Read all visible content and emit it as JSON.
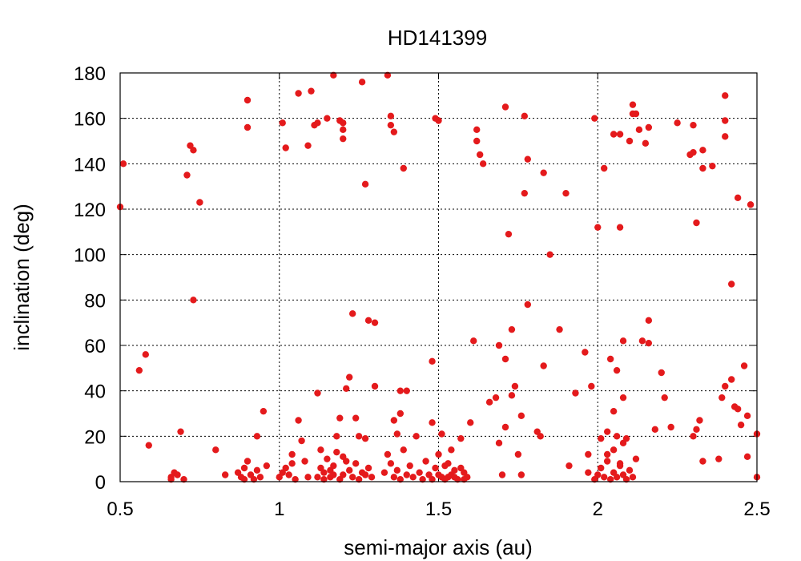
{
  "chart_data": {
    "type": "scatter",
    "title": "HD141399",
    "xlabel": "semi-major axis (au)",
    "ylabel": "inclination (deg)",
    "xlim": [
      0.5,
      2.5
    ],
    "ylim": [
      0,
      180
    ],
    "xticks": [
      0.5,
      1,
      1.5,
      2,
      2.5
    ],
    "xtick_labels": [
      "0.5",
      "1",
      "1.5",
      "2",
      "2.5"
    ],
    "yticks": [
      0,
      20,
      40,
      60,
      80,
      100,
      120,
      140,
      160,
      180
    ],
    "ytick_labels": [
      "0",
      "20",
      "40",
      "60",
      "80",
      "100",
      "120",
      "140",
      "160",
      "180"
    ],
    "grid": true,
    "marker_color": "#e41a1c",
    "points": [
      [
        0.5,
        121
      ],
      [
        0.51,
        140
      ],
      [
        0.56,
        49
      ],
      [
        0.58,
        56
      ],
      [
        0.59,
        16
      ],
      [
        0.71,
        135
      ],
      [
        0.72,
        148
      ],
      [
        0.73,
        146
      ],
      [
        0.73,
        80
      ],
      [
        0.75,
        123
      ],
      [
        0.69,
        22
      ],
      [
        0.66,
        2
      ],
      [
        0.67,
        4
      ],
      [
        0.68,
        3
      ],
      [
        0.7,
        1
      ],
      [
        0.66,
        1
      ],
      [
        0.8,
        14
      ],
      [
        0.83,
        3
      ],
      [
        0.87,
        4
      ],
      [
        0.88,
        2
      ],
      [
        0.89,
        6
      ],
      [
        0.9,
        9
      ],
      [
        0.91,
        3
      ],
      [
        0.92,
        1
      ],
      [
        0.93,
        5
      ],
      [
        0.89,
        1
      ],
      [
        0.9,
        168
      ],
      [
        0.9,
        156
      ],
      [
        0.93,
        20
      ],
      [
        0.95,
        31
      ],
      [
        0.96,
        7
      ],
      [
        0.94,
        2
      ],
      [
        1.01,
        158
      ],
      [
        1.02,
        147
      ],
      [
        1.04,
        8
      ],
      [
        1.06,
        27
      ],
      [
        1.06,
        171
      ],
      [
        1.09,
        148
      ],
      [
        1.0,
        2
      ],
      [
        1.01,
        4
      ],
      [
        1.02,
        6
      ],
      [
        1.03,
        3
      ],
      [
        1.04,
        12
      ],
      [
        1.05,
        1
      ],
      [
        1.07,
        18
      ],
      [
        1.08,
        9
      ],
      [
        1.09,
        2
      ],
      [
        1.1,
        172
      ],
      [
        1.11,
        157
      ],
      [
        1.12,
        158
      ],
      [
        1.15,
        160
      ],
      [
        1.17,
        179
      ],
      [
        1.19,
        159
      ],
      [
        1.2,
        158
      ],
      [
        1.2,
        155
      ],
      [
        1.2,
        151
      ],
      [
        1.12,
        39
      ],
      [
        1.13,
        14
      ],
      [
        1.14,
        4
      ],
      [
        1.15,
        10
      ],
      [
        1.16,
        2
      ],
      [
        1.17,
        7
      ],
      [
        1.18,
        20
      ],
      [
        1.19,
        28
      ],
      [
        1.2,
        11
      ],
      [
        1.21,
        41
      ],
      [
        1.22,
        46
      ],
      [
        1.23,
        74
      ],
      [
        1.24,
        28
      ],
      [
        1.25,
        20
      ],
      [
        1.26,
        176
      ],
      [
        1.27,
        131
      ],
      [
        1.27,
        19
      ],
      [
        1.12,
        2
      ],
      [
        1.13,
        6
      ],
      [
        1.14,
        1
      ],
      [
        1.16,
        5
      ],
      [
        1.17,
        3
      ],
      [
        1.18,
        13
      ],
      [
        1.19,
        1
      ],
      [
        1.2,
        3
      ],
      [
        1.21,
        9
      ],
      [
        1.22,
        5
      ],
      [
        1.23,
        2
      ],
      [
        1.24,
        8
      ],
      [
        1.25,
        1
      ],
      [
        1.26,
        4
      ],
      [
        1.27,
        3
      ],
      [
        1.28,
        6
      ],
      [
        1.29,
        2
      ],
      [
        1.28,
        71
      ],
      [
        1.3,
        70
      ],
      [
        1.3,
        42
      ],
      [
        1.33,
        4
      ],
      [
        1.34,
        179
      ],
      [
        1.35,
        161
      ],
      [
        1.35,
        157
      ],
      [
        1.36,
        154
      ],
      [
        1.36,
        27
      ],
      [
        1.37,
        21
      ],
      [
        1.38,
        30
      ],
      [
        1.38,
        40
      ],
      [
        1.39,
        138
      ],
      [
        1.4,
        40
      ],
      [
        1.34,
        12
      ],
      [
        1.35,
        8
      ],
      [
        1.36,
        2
      ],
      [
        1.37,
        5
      ],
      [
        1.38,
        1
      ],
      [
        1.39,
        14
      ],
      [
        1.4,
        3
      ],
      [
        1.41,
        7
      ],
      [
        1.42,
        2
      ],
      [
        1.43,
        20
      ],
      [
        1.44,
        4
      ],
      [
        1.45,
        1
      ],
      [
        1.46,
        9
      ],
      [
        1.47,
        3
      ],
      [
        1.48,
        53
      ],
      [
        1.48,
        26
      ],
      [
        1.49,
        160
      ],
      [
        1.5,
        159
      ],
      [
        1.5,
        12
      ],
      [
        1.51,
        21
      ],
      [
        1.52,
        7
      ],
      [
        1.53,
        2
      ],
      [
        1.54,
        14
      ],
      [
        1.55,
        5
      ],
      [
        1.56,
        1
      ],
      [
        1.57,
        19
      ],
      [
        1.58,
        4
      ],
      [
        1.59,
        2
      ],
      [
        1.48,
        1
      ],
      [
        1.49,
        6
      ],
      [
        1.5,
        3
      ],
      [
        1.51,
        2
      ],
      [
        1.52,
        1
      ],
      [
        1.53,
        8
      ],
      [
        1.54,
        3
      ],
      [
        1.55,
        2
      ],
      [
        1.57,
        6
      ],
      [
        1.58,
        1
      ],
      [
        1.6,
        26
      ],
      [
        1.61,
        62
      ],
      [
        1.62,
        155
      ],
      [
        1.62,
        150
      ],
      [
        1.63,
        144
      ],
      [
        1.64,
        140
      ],
      [
        1.66,
        35
      ],
      [
        1.68,
        37
      ],
      [
        1.69,
        60
      ],
      [
        1.69,
        17
      ],
      [
        1.7,
        3
      ],
      [
        1.71,
        54
      ],
      [
        1.71,
        24
      ],
      [
        1.71,
        165
      ],
      [
        1.72,
        109
      ],
      [
        1.73,
        67
      ],
      [
        1.73,
        38
      ],
      [
        1.74,
        42
      ],
      [
        1.75,
        12
      ],
      [
        1.76,
        3
      ],
      [
        1.76,
        29
      ],
      [
        1.77,
        127
      ],
      [
        1.77,
        161
      ],
      [
        1.78,
        78
      ],
      [
        1.78,
        142
      ],
      [
        1.81,
        22
      ],
      [
        1.82,
        20
      ],
      [
        1.83,
        51
      ],
      [
        1.83,
        136
      ],
      [
        1.85,
        100
      ],
      [
        1.88,
        67
      ],
      [
        1.9,
        127
      ],
      [
        1.91,
        7
      ],
      [
        1.93,
        39
      ],
      [
        1.96,
        57
      ],
      [
        1.97,
        12
      ],
      [
        1.97,
        4
      ],
      [
        1.98,
        42
      ],
      [
        1.99,
        160
      ],
      [
        2.0,
        112
      ],
      [
        2.01,
        19
      ],
      [
        2.02,
        138
      ],
      [
        2.03,
        22
      ],
      [
        2.04,
        54
      ],
      [
        2.05,
        153
      ],
      [
        2.05,
        31
      ],
      [
        2.06,
        49
      ],
      [
        2.07,
        153
      ],
      [
        2.07,
        112
      ],
      [
        2.08,
        62
      ],
      [
        2.08,
        37
      ],
      [
        2.09,
        19
      ],
      [
        2.1,
        150
      ],
      [
        2.11,
        162
      ],
      [
        2.11,
        166
      ],
      [
        2.12,
        162
      ],
      [
        2.13,
        155
      ],
      [
        2.14,
        62
      ],
      [
        2.15,
        149
      ],
      [
        2.16,
        156
      ],
      [
        2.16,
        71
      ],
      [
        2.16,
        61
      ],
      [
        1.99,
        1
      ],
      [
        2.0,
        3
      ],
      [
        2.01,
        6
      ],
      [
        2.02,
        2
      ],
      [
        2.03,
        9
      ],
      [
        2.04,
        1
      ],
      [
        2.05,
        4
      ],
      [
        2.06,
        2
      ],
      [
        2.07,
        7
      ],
      [
        2.08,
        3
      ],
      [
        2.09,
        1
      ],
      [
        2.1,
        5
      ],
      [
        2.11,
        2
      ],
      [
        2.12,
        10
      ],
      [
        2.05,
        14
      ],
      [
        2.06,
        20
      ],
      [
        2.07,
        8
      ],
      [
        2.08,
        17
      ],
      [
        2.03,
        12
      ],
      [
        2.18,
        23
      ],
      [
        2.2,
        48
      ],
      [
        2.21,
        37
      ],
      [
        2.23,
        24
      ],
      [
        2.25,
        158
      ],
      [
        2.29,
        144
      ],
      [
        2.3,
        145
      ],
      [
        2.3,
        157
      ],
      [
        2.3,
        20
      ],
      [
        2.31,
        114
      ],
      [
        2.31,
        23
      ],
      [
        2.32,
        27
      ],
      [
        2.33,
        146
      ],
      [
        2.33,
        138
      ],
      [
        2.33,
        9
      ],
      [
        2.36,
        139
      ],
      [
        2.38,
        10
      ],
      [
        2.39,
        37
      ],
      [
        2.4,
        42
      ],
      [
        2.4,
        152
      ],
      [
        2.4,
        159
      ],
      [
        2.4,
        170
      ],
      [
        2.42,
        87
      ],
      [
        2.42,
        45
      ],
      [
        2.43,
        33
      ],
      [
        2.44,
        125
      ],
      [
        2.44,
        32
      ],
      [
        2.45,
        25
      ],
      [
        2.46,
        51
      ],
      [
        2.47,
        29
      ],
      [
        2.47,
        11
      ],
      [
        2.48,
        122
      ],
      [
        2.5,
        21
      ],
      [
        2.5,
        2
      ]
    ]
  }
}
